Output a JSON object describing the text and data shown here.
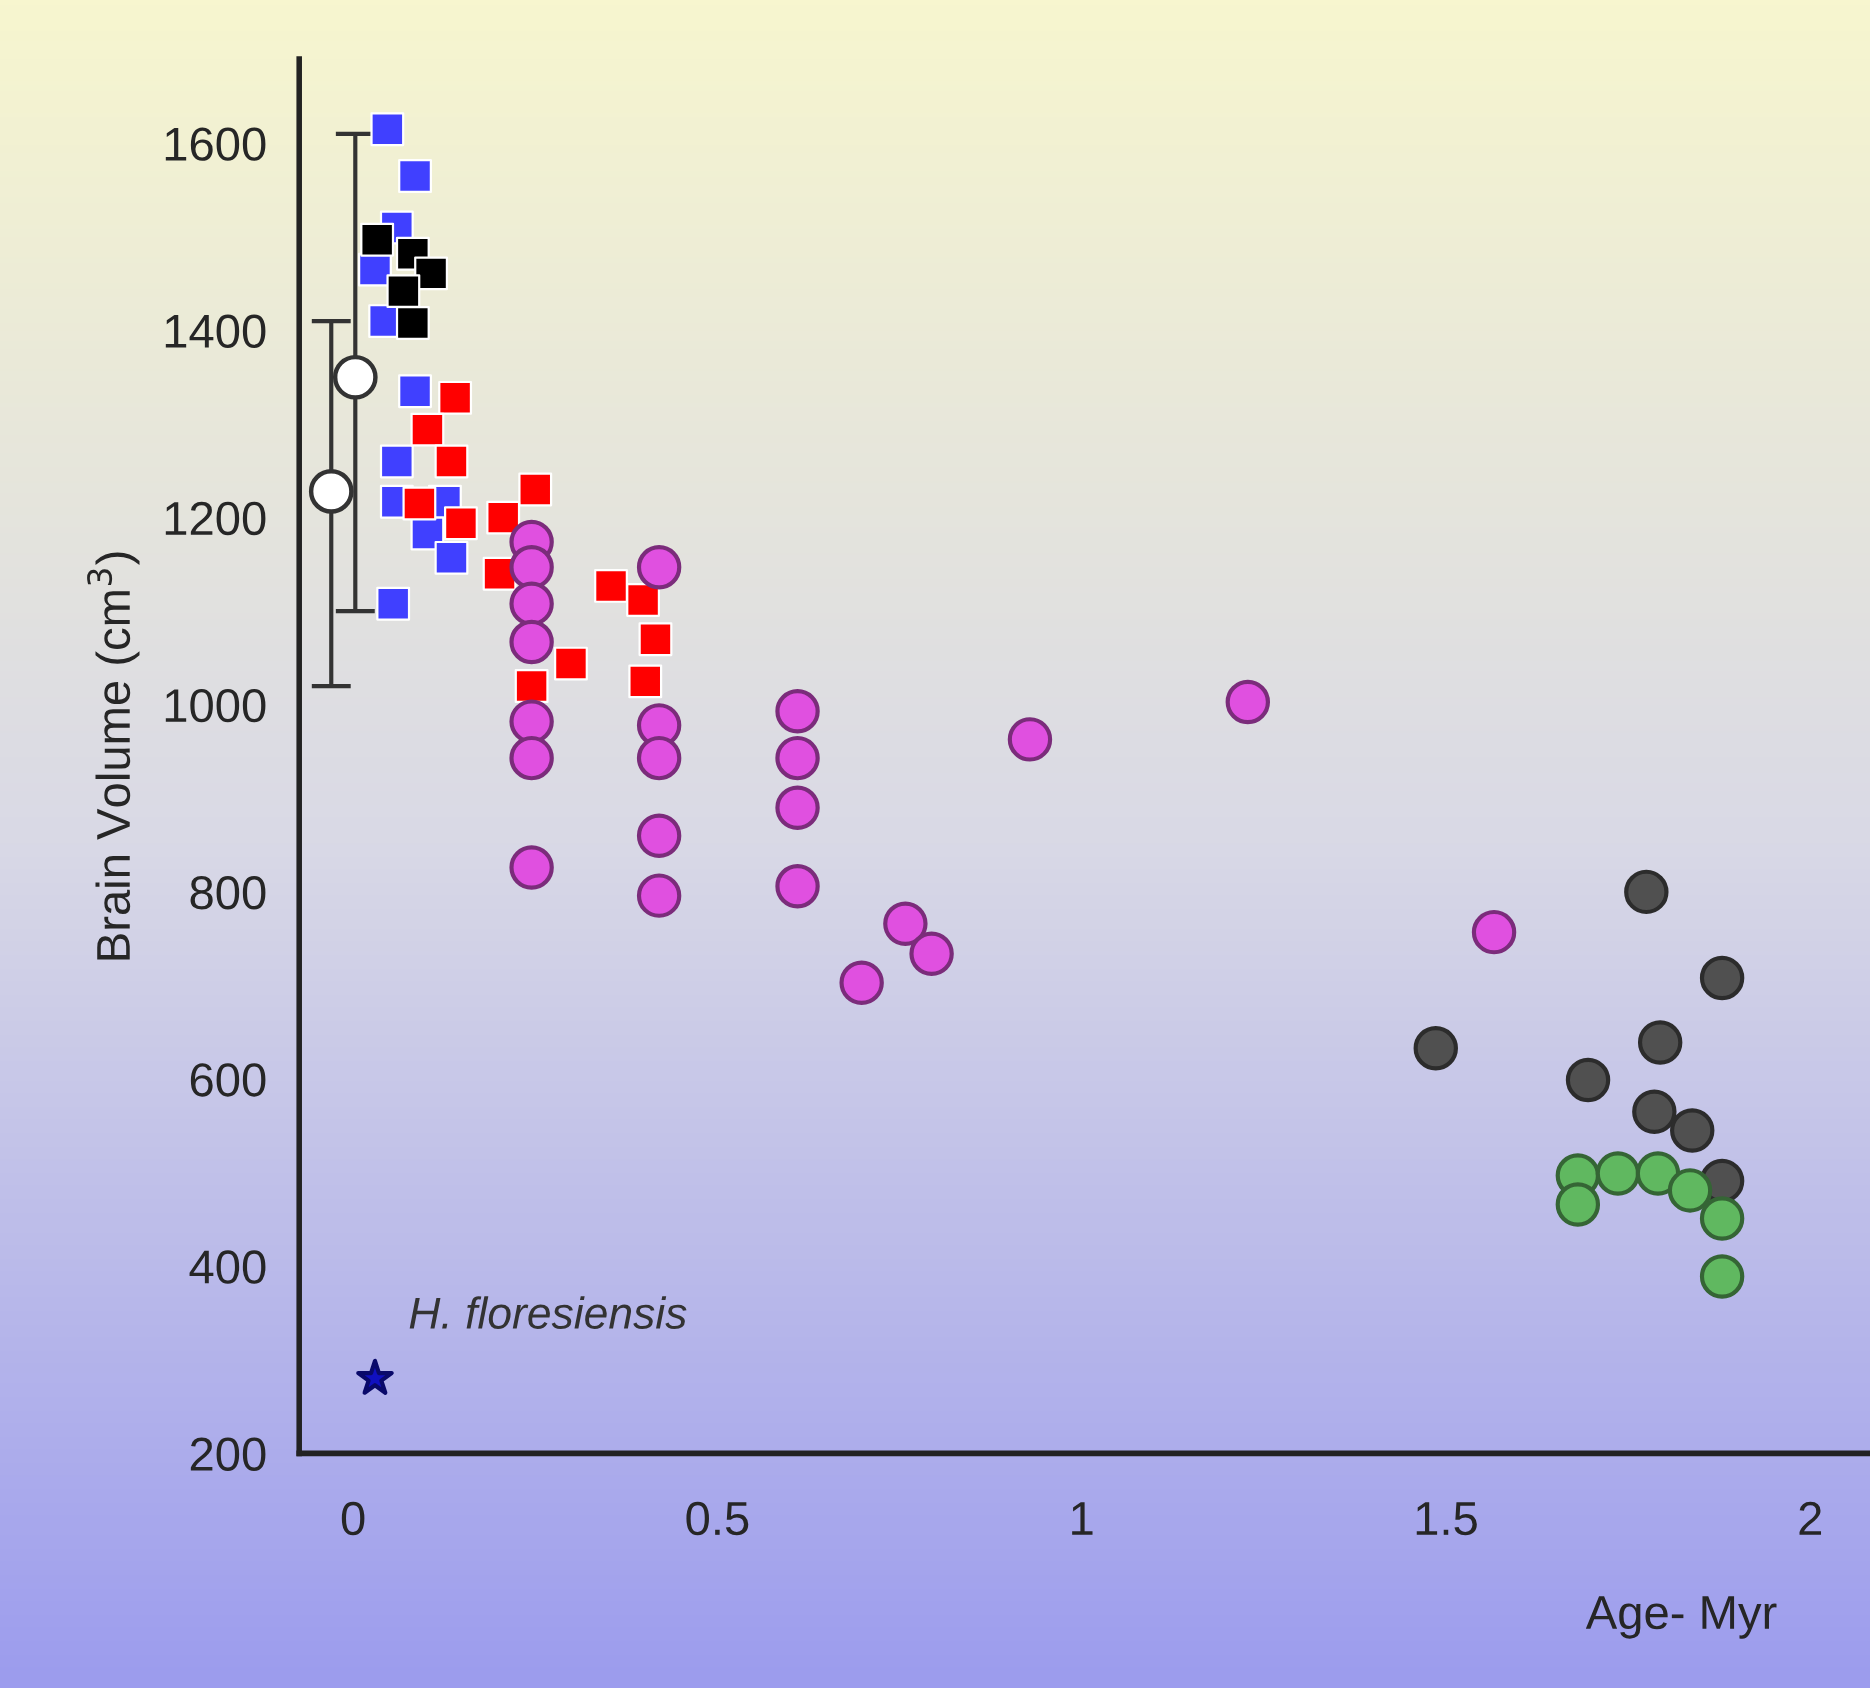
{
  "chart_data": {
    "type": "scatter",
    "xlabel": "Age- Myr",
    "ylabel": "Brain Volume (cm$^{3}$)",
    "xlim": [
      -0.074,
      2.082
    ],
    "ylim": [
      200,
      1690
    ],
    "xticks": [
      0,
      0.5,
      1,
      1.5,
      2
    ],
    "yticks": [
      200,
      400,
      600,
      800,
      1000,
      1200,
      1400,
      1600
    ],
    "grid": false,
    "annotations": [
      {
        "text": "H. floresiensis",
        "x": 0.03,
        "y": 280
      }
    ],
    "series": [
      {
        "color": "#4040ff",
        "marker": "square",
        "x": [
          0.047,
          0.085,
          0.06,
          0.03,
          0.044,
          0.085,
          0.06,
          0.06,
          0.126,
          0.102,
          0.135,
          0.055
        ],
        "values": [
          1615,
          1565,
          1510,
          1465,
          1410,
          1335,
          1260,
          1217,
          1217,
          1183,
          1157,
          1108
        ]
      },
      {
        "color": "#000000",
        "marker": "square",
        "x": [
          0.033,
          0.082,
          0.107,
          0.069,
          0.082
        ],
        "values": [
          1497,
          1482,
          1461,
          1442,
          1408
        ]
      },
      {
        "color": "#ff0000",
        "marker": "square",
        "x": [
          0.14,
          0.102,
          0.135,
          0.091,
          0.148,
          0.25,
          0.206,
          0.201,
          0.245,
          0.299,
          0.354,
          0.398,
          0.415,
          0.401
        ],
        "values": [
          1328,
          1294,
          1260,
          1215,
          1194,
          1230,
          1200,
          1140,
          1020,
          1044,
          1127,
          1112,
          1070,
          1025
        ]
      },
      {
        "color": "#e050e0",
        "marker": "circle",
        "x": [
          0.245,
          0.245,
          0.245,
          0.245,
          0.245,
          0.245,
          0.245,
          0.42,
          0.42,
          0.42,
          0.42,
          0.42,
          0.61,
          0.61,
          0.61,
          0.61,
          0.758,
          0.794,
          0.698,
          0.929,
          1.228,
          1.566
        ],
        "values": [
          1174,
          1147,
          1108,
          1067,
          982,
          943,
          826,
          1147,
          978,
          943,
          860,
          796,
          993,
          943,
          890,
          806,
          766,
          734,
          703,
          963,
          1003,
          757
        ]
      },
      {
        "color": "#505050",
        "marker": "circle",
        "x": [
          1.775,
          1.879,
          1.486,
          1.794,
          1.695,
          1.786,
          1.838,
          1.879
        ],
        "values": [
          800,
          708,
          633,
          639,
          599,
          565,
          545,
          491
        ]
      },
      {
        "color": "#60b860",
        "marker": "circle",
        "x": [
          1.681,
          1.736,
          1.791,
          1.835,
          1.681,
          1.879,
          1.879
        ],
        "values": [
          497,
          499,
          499,
          481,
          466,
          451,
          389
        ]
      },
      {
        "color": "#1010c0",
        "marker": "star",
        "x": [
          0.03
        ],
        "values": [
          280
        ]
      },
      {
        "color": "#333333",
        "marker": "circle",
        "x": [
          0.003
        ],
        "values": [
          1350
        ],
        "errors": [
          [
            1100,
            1610
          ]
        ]
      },
      {
        "color": "#333333",
        "marker": "circle",
        "x": [
          -0.03
        ],
        "values": [
          1228
        ],
        "errors": [
          [
            1020,
            1410
          ]
        ]
      }
    ]
  }
}
